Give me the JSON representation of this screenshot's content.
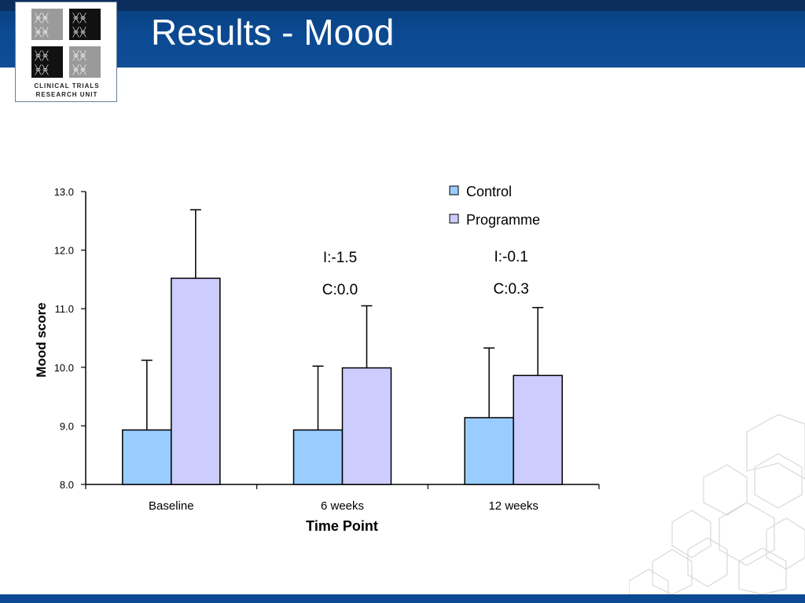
{
  "slide": {
    "title": "Results - Mood",
    "logo_line1": "CLINICAL TRIALS",
    "logo_line2": "RESEARCH UNIT"
  },
  "colors": {
    "header": "#0b4a92",
    "control": "#99ccff",
    "programme": "#ccccff",
    "axis": "#000000"
  },
  "chart_data": {
    "type": "bar",
    "categories": [
      "Baseline",
      "6 weeks",
      "12 weeks"
    ],
    "series": [
      {
        "name": "Control",
        "values": [
          8.93,
          8.93,
          9.14
        ],
        "error_upper": [
          10.12,
          10.02,
          10.33
        ]
      },
      {
        "name": "Programme",
        "values": [
          11.52,
          9.99,
          9.86
        ],
        "error_upper": [
          12.69,
          11.05,
          11.02
        ]
      }
    ],
    "xlabel": "Time Point",
    "ylabel": "Mood score",
    "ylim": [
      8.0,
      13.0
    ],
    "yticks": [
      "8.0",
      "9.0",
      "10.0",
      "11.0",
      "12.0",
      "13.0"
    ],
    "legend_position": "top-right",
    "annotations": [
      {
        "category": "6 weeks",
        "lines": [
          "I:-1.5",
          "C:0.0"
        ]
      },
      {
        "category": "12 weeks",
        "lines": [
          "I:-0.1",
          "C:0.3"
        ]
      }
    ]
  }
}
